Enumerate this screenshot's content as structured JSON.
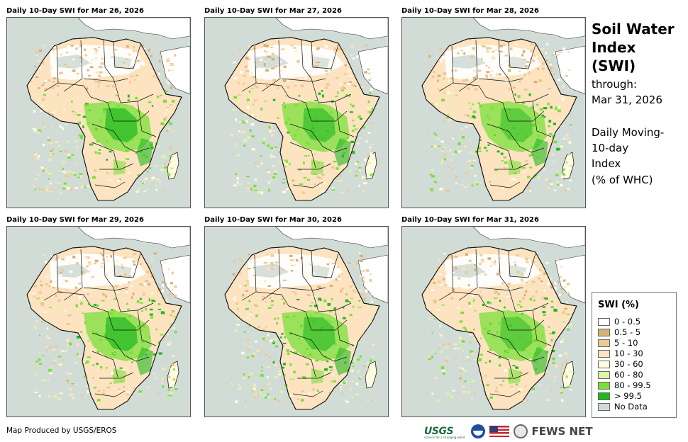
{
  "panels": [
    {
      "title": "Daily 10-Day SWI for Mar 26, 2026"
    },
    {
      "title": "Daily 10-Day SWI for Mar 27, 2026"
    },
    {
      "title": "Daily 10-Day SWI for Mar 28, 2026"
    },
    {
      "title": "Daily 10-Day SWI for Mar 29, 2026"
    },
    {
      "title": "Daily 10-Day SWI for Mar 30, 2026"
    },
    {
      "title": "Daily 10-Day SWI for Mar 31, 2026"
    }
  ],
  "side": {
    "title": "Soil Water Index (SWI)",
    "through_label": "through:",
    "through_date": "Mar 31, 2026",
    "desc_line1": "Daily Moving-",
    "desc_line2": "10-day",
    "desc_line3": "Index",
    "desc_line4": "(% of WHC)"
  },
  "legend": {
    "title": "SWI (%)",
    "items": [
      {
        "label": "0 - 0.5",
        "color": "#ffffff"
      },
      {
        "label": "0.5 - 5",
        "color": "#d8b07a"
      },
      {
        "label": "5 - 10",
        "color": "#ecc996"
      },
      {
        "label": "10 - 30",
        "color": "#fde3c0"
      },
      {
        "label": "30 - 60",
        "color": "#fffde0"
      },
      {
        "label": "60 - 80",
        "color": "#dff5a8"
      },
      {
        "label": "80 - 99.5",
        "color": "#7be03a"
      },
      {
        "label": "> 99.5",
        "color": "#1fb81f"
      },
      {
        "label": "No Data",
        "color": "#d2dcd6"
      }
    ]
  },
  "footer": {
    "credit": "Map Produced by USGS/EROS",
    "usgs_label": "USGS",
    "usgs_tagline": "science for a changing world",
    "fews_label": "FEWS NET"
  }
}
